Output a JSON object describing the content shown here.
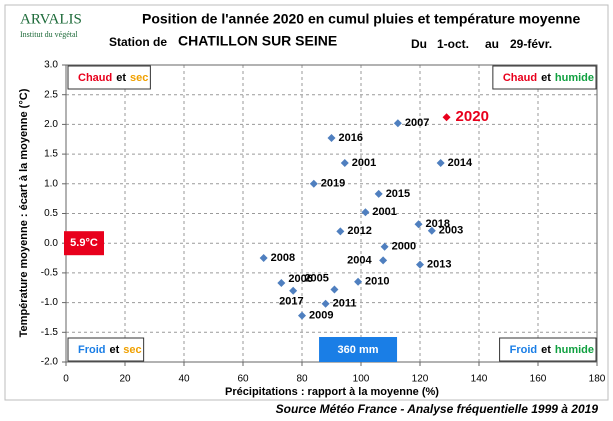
{
  "chart_data": {
    "type": "scatter",
    "logo": {
      "name": "ARVALIS",
      "tagline": "Institut du végétal"
    },
    "title": "Position de l'année 2020 en cumul pluies et température moyenne",
    "station_prefix": "Station de",
    "station": "CHATILLON SUR SEINE",
    "period": {
      "from_label": "Du",
      "from": "1-oct.",
      "to_label": "au",
      "to": "29-févr."
    },
    "xlabel": "Précipitations : rapport à la moyenne (%)",
    "ylabel": "Température moyenne : écart à la moyenne (°C)",
    "source": "Source Météo France - Analyse fréquentielle 1999 à 2019",
    "color": "#4f7fbf",
    "x": [
      112.5,
      90,
      94.5,
      127,
      84,
      106,
      101.5,
      119.5,
      124,
      93,
      108,
      67,
      107.5,
      120,
      73,
      91,
      99,
      77,
      88,
      80
    ],
    "values": [
      2.02,
      1.77,
      1.35,
      1.35,
      1.0,
      0.83,
      0.52,
      0.32,
      0.21,
      0.2,
      -0.06,
      -0.25,
      -0.29,
      -0.36,
      -0.67,
      -0.78,
      -0.65,
      -0.8,
      -1.02,
      -1.22
    ],
    "labels": [
      "2007",
      "2016",
      "2001",
      "2014",
      "2019",
      "2015",
      "2001",
      "2018",
      "2003",
      "2012",
      "2000",
      "2008",
      "2004",
      "2013",
      "2006",
      "2005",
      "2010",
      "2017",
      "2011",
      "2009"
    ],
    "highlight": {
      "x": 129,
      "y": 2.12,
      "label": "2020",
      "color": "#e8001c"
    },
    "mean_temperature": {
      "label": "5.9°C",
      "y": 0,
      "color": "#e8001c"
    },
    "mean_rain": {
      "label": "360 mm",
      "x": 99,
      "color": "#1a7ee6"
    },
    "quadrants": [
      {
        "corner": "top-left",
        "parts": [
          {
            "text": "Chaud",
            "color": "#e8001c"
          },
          {
            "text": "et",
            "color": "#000000"
          },
          {
            "text": "sec",
            "color": "#f0a000"
          }
        ]
      },
      {
        "corner": "top-right",
        "parts": [
          {
            "text": "Chaud",
            "color": "#e8001c"
          },
          {
            "text": "et",
            "color": "#000000"
          },
          {
            "text": "humide",
            "color": "#10a040"
          }
        ]
      },
      {
        "corner": "bottom-left",
        "parts": [
          {
            "text": "Froid",
            "color": "#1a7ee6"
          },
          {
            "text": "et",
            "color": "#000000"
          },
          {
            "text": "sec",
            "color": "#f0a000"
          }
        ]
      },
      {
        "corner": "bottom-right",
        "parts": [
          {
            "text": "Froid",
            "color": "#1a7ee6"
          },
          {
            "text": "et",
            "color": "#000000"
          },
          {
            "text": "humide",
            "color": "#10a040"
          }
        ]
      }
    ],
    "xlim": [
      0,
      180
    ],
    "xticks": [
      0,
      20,
      40,
      60,
      80,
      100,
      120,
      140,
      160,
      180
    ],
    "ylim": [
      -2,
      3
    ],
    "yticks": [
      {
        "value": 3,
        "label": "3.0"
      },
      2.5,
      {
        "value": 2,
        "label": "2.0"
      },
      1.5,
      {
        "value": 1,
        "label": "1.0"
      },
      0.5,
      {
        "value": 0,
        "label": "0.0"
      },
      -0.5,
      {
        "value": -1,
        "label": "-1.0"
      },
      -1.5,
      {
        "value": -2,
        "label": "-2.0"
      }
    ],
    "grid": true
  }
}
